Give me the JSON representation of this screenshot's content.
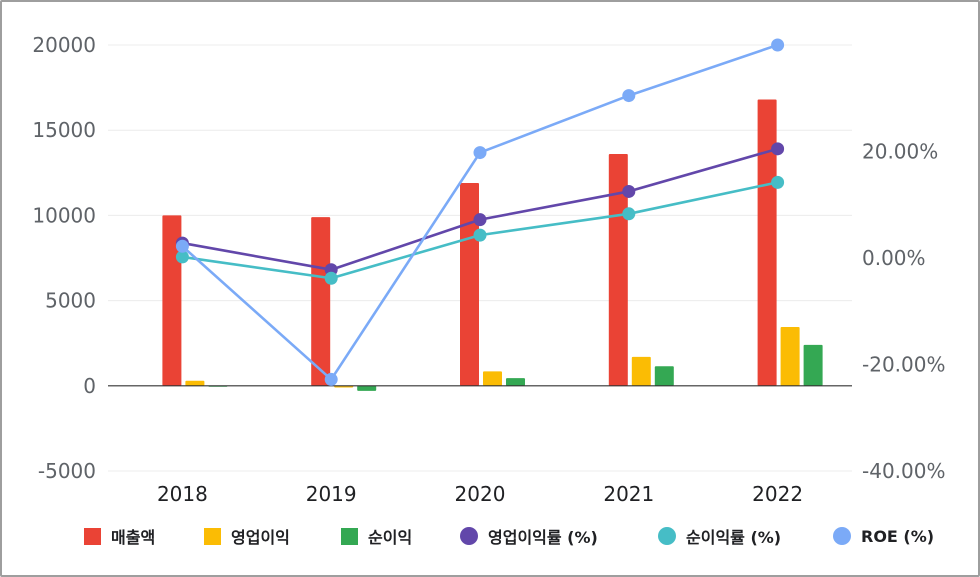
{
  "chart_data": {
    "type": "bar",
    "categories": [
      "2018",
      "2019",
      "2020",
      "2021",
      "2022"
    ],
    "left_axis": {
      "ylim": [
        -5000,
        20000
      ],
      "ticks": [
        "20000",
        "15000",
        "10000",
        "5000",
        "0",
        "-5000"
      ]
    },
    "right_axis": {
      "ylim": [
        -40,
        40
      ],
      "ticks": [
        "20.00%",
        "0.00%",
        "-20.00%",
        "-40.00%"
      ]
    },
    "series": [
      {
        "name": "매출액",
        "kind": "bar",
        "axis": "left",
        "color": "#ea4335",
        "values": [
          10000,
          9900,
          11900,
          13600,
          16800
        ]
      },
      {
        "name": "영업이익",
        "kind": "bar",
        "axis": "left",
        "color": "#fbbc04",
        "values": [
          300,
          -100,
          850,
          1700,
          3450
        ]
      },
      {
        "name": "순이익",
        "kind": "bar",
        "axis": "left",
        "color": "#34a853",
        "values": [
          0,
          -300,
          450,
          1150,
          2400
        ]
      },
      {
        "name": "영업이익률 (%)",
        "kind": "line",
        "axis": "right",
        "color": "#6247aa",
        "values": [
          2.8,
          -2.2,
          7.2,
          12.5,
          20.5
        ]
      },
      {
        "name": "순이익률 (%)",
        "kind": "line",
        "axis": "right",
        "color": "#46bdc6",
        "values": [
          0.2,
          -3.8,
          4.3,
          8.3,
          14.2
        ]
      },
      {
        "name": "ROE (%)",
        "kind": "line",
        "axis": "right",
        "color": "#7baaf7",
        "values": [
          2.2,
          -22.8,
          19.8,
          30.5,
          40.0
        ]
      }
    ],
    "grid": true,
    "legend": "bottom"
  }
}
